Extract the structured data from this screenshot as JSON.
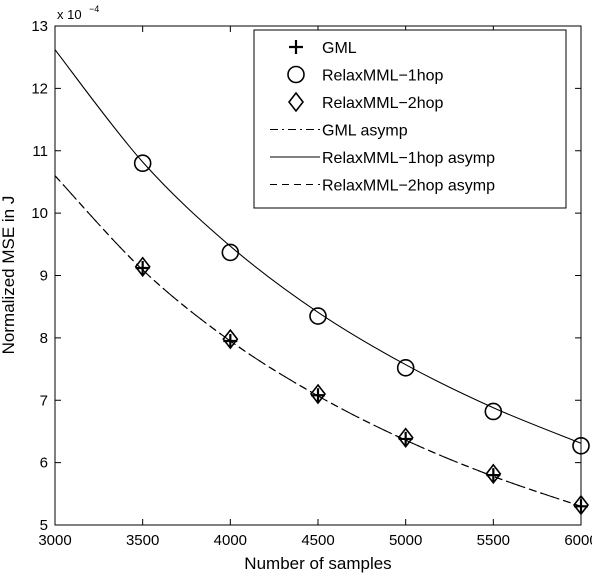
{
  "chart_data": {
    "type": "line",
    "xlabel": "Number of samples",
    "ylabel": "Normalized MSE in J",
    "exponent": "x 10",
    "exponent_power": "−4",
    "xlim": [
      3000,
      6000
    ],
    "ylim": [
      5,
      13
    ],
    "xticks": [
      3000,
      3500,
      4000,
      4500,
      5000,
      5500,
      6000
    ],
    "yticks": [
      5,
      6,
      7,
      8,
      9,
      10,
      11,
      12,
      13
    ],
    "grid": false,
    "legend_position": "top-right",
    "series": [
      {
        "name": "GML",
        "kind": "marker",
        "marker": "plus",
        "x": [
          3500,
          4000,
          4500,
          5000,
          5500,
          6000
        ],
        "y": [
          9.12,
          7.95,
          7.08,
          6.38,
          5.8,
          5.3
        ]
      },
      {
        "name": "RelaxMML−1hop",
        "kind": "marker",
        "marker": "circle",
        "x": [
          3500,
          4000,
          4500,
          5000,
          5500,
          6000
        ],
        "y": [
          10.8,
          9.37,
          8.35,
          7.52,
          6.82,
          6.27
        ]
      },
      {
        "name": "RelaxMML−2hop",
        "kind": "marker",
        "marker": "diamond",
        "x": [
          3500,
          4000,
          4500,
          5000,
          5500,
          6000
        ],
        "y": [
          9.14,
          7.98,
          7.1,
          6.4,
          5.82,
          5.32
        ]
      },
      {
        "name": "GML asymp",
        "kind": "line",
        "dash": "dashdot",
        "x": [
          3000,
          3500,
          4000,
          4500,
          5000,
          5500,
          6000
        ],
        "y": [
          10.6,
          9.09,
          7.95,
          7.07,
          6.36,
          5.78,
          5.3
        ]
      },
      {
        "name": "RelaxMML−1hop asymp",
        "kind": "line",
        "dash": "solid",
        "x": [
          3000,
          3500,
          4000,
          4500,
          5000,
          5500,
          6000
        ],
        "y": [
          12.62,
          10.82,
          9.47,
          8.41,
          7.57,
          6.88,
          6.31
        ]
      },
      {
        "name": "RelaxMML−2hop asymp",
        "kind": "line",
        "dash": "dashed",
        "x": [
          3000,
          3500,
          4000,
          4500,
          5000,
          5500,
          6000
        ],
        "y": [
          10.6,
          9.09,
          7.95,
          7.07,
          6.36,
          5.78,
          5.3
        ]
      }
    ]
  }
}
